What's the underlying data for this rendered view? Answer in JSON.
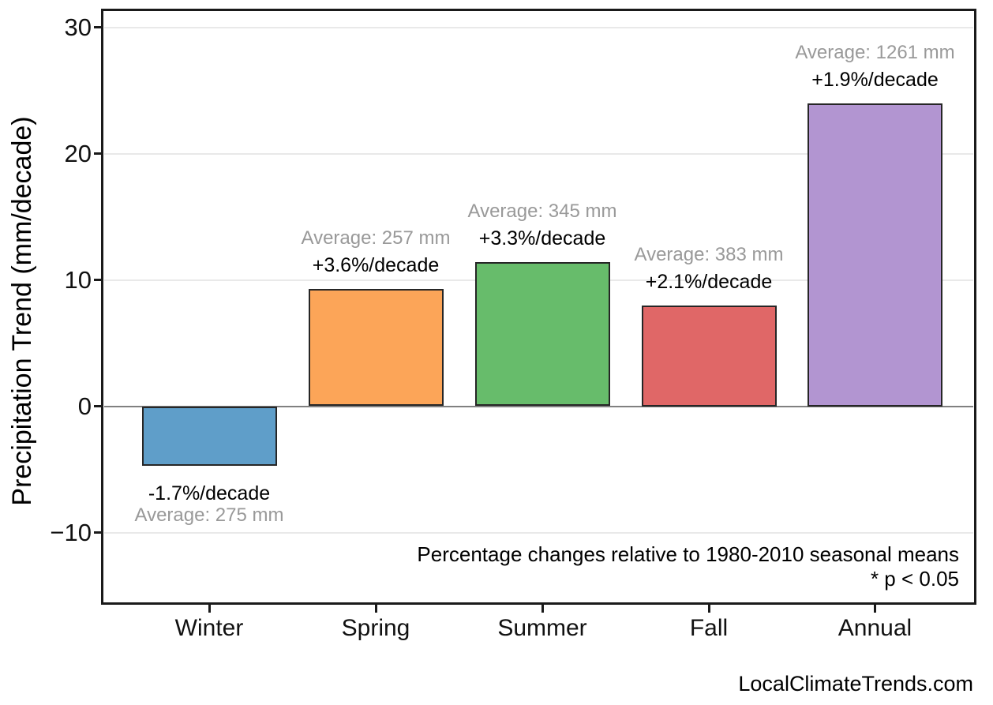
{
  "chart_data": {
    "type": "bar",
    "title": "",
    "categories": [
      "Winter",
      "Spring",
      "Summer",
      "Fall",
      "Annual"
    ],
    "values": [
      -4.7,
      9.3,
      11.4,
      8.0,
      24.0
    ],
    "series_name": "Precipitation trend (mm/decade)",
    "pct_per_decade": [
      -1.7,
      3.6,
      3.3,
      2.1,
      1.9
    ],
    "averages_mm": [
      275,
      257,
      345,
      383,
      1261
    ],
    "pct_labels": [
      "-1.7%/decade",
      "+3.6%/decade",
      "+3.3%/decade",
      "+2.1%/decade",
      "+1.9%/decade"
    ],
    "avg_labels": [
      "Average: 275 mm",
      "Average: 257 mm",
      "Average: 345 mm",
      "Average: 383 mm",
      "Average: 1261 mm"
    ],
    "bar_colors": [
      "#5F9EC9",
      "#FCA558",
      "#67BC6B",
      "#E06767",
      "#B295D1"
    ],
    "bar_edge_color": "#262626",
    "xlabel": "",
    "ylabel": "Precipitation Trend (mm/decade)",
    "ylim": [
      -15.7,
      31.4
    ],
    "yticks": [
      30,
      20,
      10,
      0,
      -10
    ],
    "grid": "horizontal light-gray lines at 10-unit intervals, darker gray zero line",
    "legend": "none",
    "notes": [
      "Percentage changes relative to 1980-2010 seasonal means",
      "* p < 0.05"
    ],
    "footer": "LocalClimateTrends.com",
    "label_colors": {
      "pct": "#000000",
      "avg": "#999999"
    }
  }
}
